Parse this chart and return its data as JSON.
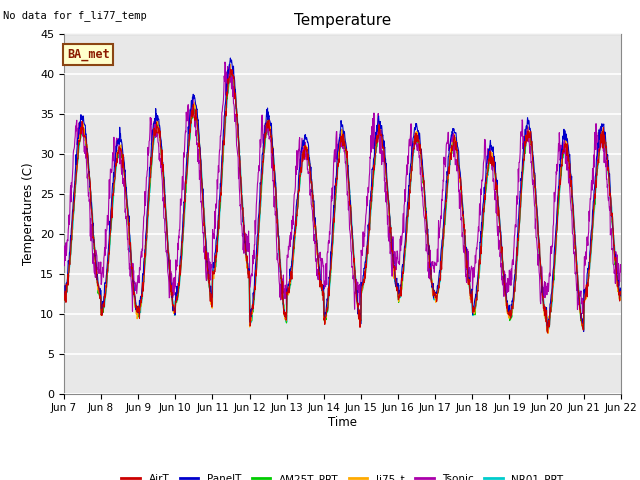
{
  "title": "Temperature",
  "ylabel": "Temperatures (C)",
  "xlabel": "Time",
  "no_data_text": "No data for f_li77_temp",
  "ba_met_label": "BA_met",
  "ylim": [
    0,
    45
  ],
  "yticks": [
    0,
    5,
    10,
    15,
    20,
    25,
    30,
    35,
    40,
    45
  ],
  "xtick_labels": [
    "Jun 7",
    "Jun 8",
    "Jun 9",
    "Jun 10",
    "Jun 11",
    "Jun 12",
    "Jun 13",
    "Jun 14",
    "Jun 15",
    "Jun 16",
    "Jun 17",
    "Jun 18",
    "Jun 19",
    "Jun 20",
    "Jun 21",
    "Jun 22"
  ],
  "bg_color": "#e8e8e8",
  "grid_color": "white",
  "series_colors": {
    "AirT": "#cc0000",
    "PanelT": "#0000cc",
    "AM25T_PRT": "#00cc00",
    "li75_t": "#ffaa00",
    "Tsonic": "#aa00aa",
    "NR01_PRT": "#00cccc"
  },
  "n_days": 15,
  "pts_per_day": 96,
  "daily_max": [
    33,
    30.5,
    33.5,
    35.5,
    40,
    33.5,
    30.5,
    32,
    32.5,
    32,
    31.5,
    29.5,
    32.5,
    31,
    32
  ],
  "daily_min": [
    12,
    10,
    10,
    11.5,
    15,
    9,
    12.5,
    9,
    13,
    12,
    12,
    10,
    9.5,
    8,
    12
  ]
}
